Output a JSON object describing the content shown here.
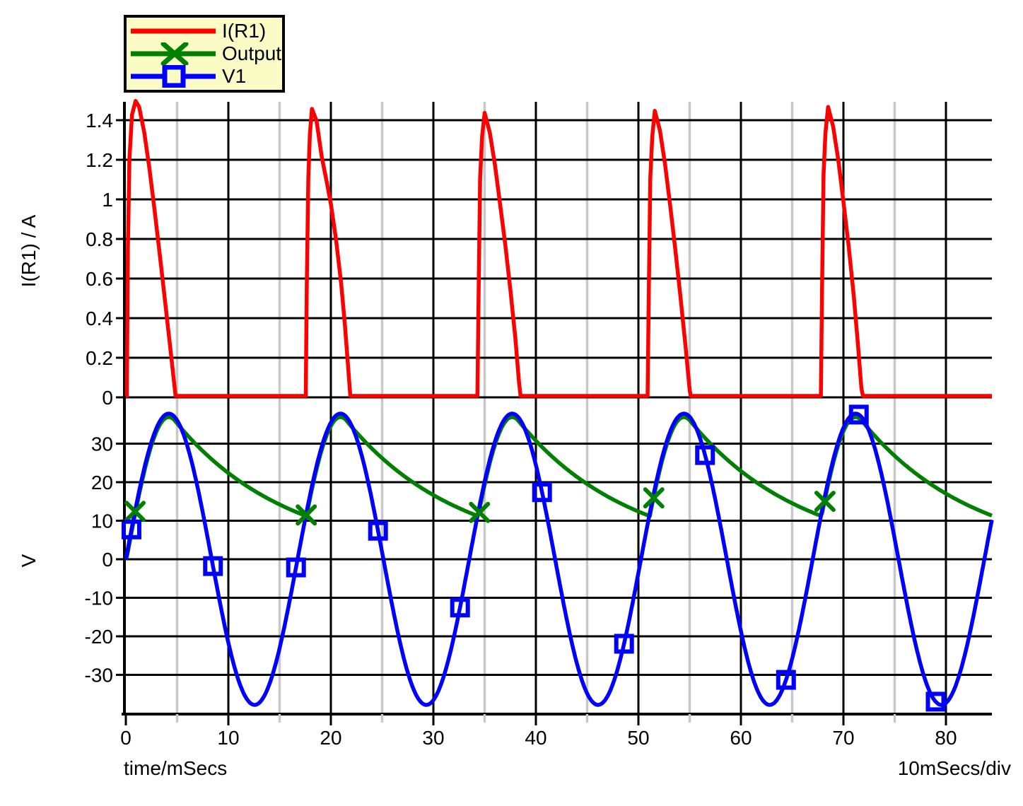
{
  "figure": {
    "background": "#FFFFFF"
  },
  "legend": {
    "bg": "#FBFBC6",
    "border_color": "#000000",
    "items": [
      {
        "label": "I(R1)",
        "color": "#FF0000",
        "marker": "none"
      },
      {
        "label": "Output",
        "color": "#008000",
        "marker": "x"
      },
      {
        "label": "V1",
        "color": "#0000FF",
        "marker": "square"
      }
    ]
  },
  "chart_data": {
    "type": "line",
    "layout": "two stacked plots sharing time axis, grid on",
    "x_axis": {
      "label": "time/mSecs",
      "scale_label": "10mSecs/div",
      "range": [
        0,
        84.5
      ],
      "major_ticks": [
        0,
        10,
        20,
        30,
        40,
        50,
        60,
        70,
        80
      ],
      "major_tick_labels": [
        "0",
        "10",
        "20",
        "30",
        "40",
        "50",
        "60",
        "70",
        "80"
      ],
      "minor_ticks": [
        5,
        15,
        25,
        35,
        45,
        55,
        65,
        75
      ],
      "grid_major_color": "#000000",
      "grid_minor_color": "#C8C8C8"
    },
    "top_plot": {
      "ylabel": "I(R1) / A",
      "y_range": [
        0,
        1.5
      ],
      "y_ticks": [
        0,
        0.2,
        0.4,
        0.6,
        0.8,
        1,
        1.2,
        1.4
      ],
      "y_tick_labels": [
        "0",
        "0.2",
        "0.4",
        "0.6",
        "0.8",
        "1",
        "1.2",
        "1.4"
      ],
      "series": [
        {
          "name": "I(R1)",
          "color": "#FF0000",
          "marker": "none",
          "points": [
            [
              0,
              0
            ],
            [
              0.1,
              0
            ],
            [
              0.2,
              0.75
            ],
            [
              0.35,
              1.2
            ],
            [
              0.6,
              1.42
            ],
            [
              0.95,
              1.49
            ],
            [
              1.3,
              1.46
            ],
            [
              1.8,
              1.33
            ],
            [
              2.3,
              1.15
            ],
            [
              2.8,
              0.94
            ],
            [
              3.3,
              0.72
            ],
            [
              3.8,
              0.49
            ],
            [
              4.3,
              0.26
            ],
            [
              4.7,
              0.07
            ],
            [
              4.85,
              0
            ],
            [
              17.55,
              0
            ],
            [
              17.65,
              0.55
            ],
            [
              17.8,
              1.1
            ],
            [
              17.95,
              1.32
            ],
            [
              18.15,
              1.45
            ],
            [
              18.6,
              1.39
            ],
            [
              19.1,
              1.21
            ],
            [
              19.6,
              1.08
            ],
            [
              20.0,
              0.97
            ],
            [
              20.5,
              0.79
            ],
            [
              21.0,
              0.57
            ],
            [
              21.35,
              0.37
            ],
            [
              21.65,
              0.17
            ],
            [
              21.9,
              0
            ],
            [
              34.3,
              0
            ],
            [
              34.42,
              0.55
            ],
            [
              34.56,
              1.1
            ],
            [
              34.75,
              1.31
            ],
            [
              35.0,
              1.43
            ],
            [
              35.5,
              1.33
            ],
            [
              36.0,
              1.17
            ],
            [
              36.5,
              0.97
            ],
            [
              37.0,
              0.77
            ],
            [
              37.5,
              0.54
            ],
            [
              38.0,
              0.29
            ],
            [
              38.35,
              0.07
            ],
            [
              38.5,
              0
            ],
            [
              50.9,
              0
            ],
            [
              51.02,
              0.55
            ],
            [
              51.16,
              1.1
            ],
            [
              51.35,
              1.31
            ],
            [
              51.6,
              1.44
            ],
            [
              52.1,
              1.34
            ],
            [
              52.6,
              1.17
            ],
            [
              53.1,
              0.96
            ],
            [
              53.6,
              0.74
            ],
            [
              54.1,
              0.5
            ],
            [
              54.6,
              0.25
            ],
            [
              55.0,
              0.03
            ],
            [
              55.1,
              0
            ],
            [
              67.8,
              0
            ],
            [
              67.92,
              0.55
            ],
            [
              68.06,
              1.12
            ],
            [
              68.25,
              1.33
            ],
            [
              68.5,
              1.46
            ],
            [
              69.0,
              1.36
            ],
            [
              69.5,
              1.19
            ],
            [
              70.0,
              0.98
            ],
            [
              70.5,
              0.76
            ],
            [
              71.0,
              0.51
            ],
            [
              71.4,
              0.27
            ],
            [
              71.75,
              0.04
            ],
            [
              71.9,
              0
            ],
            [
              84.5,
              0
            ]
          ]
        }
      ]
    },
    "bottom_plot": {
      "ylabel": "V",
      "y_range": [
        -40,
        39
      ],
      "y_ticks": [
        -30,
        -20,
        -10,
        0,
        10,
        20,
        30
      ],
      "y_tick_labels": [
        "-30",
        "-20",
        "-10",
        "0",
        "10",
        "20",
        "30"
      ],
      "series": [
        {
          "name": "Output",
          "color": "#008000",
          "marker": "x",
          "model": {
            "kind": "rectifier_output",
            "follows": "V1",
            "diode_drop_V": 0.9,
            "decay_tau_ms": 11.0,
            "conduction_windows_ms": [
              [
                0.1,
                4.85
              ],
              [
                17.55,
                21.9
              ],
              [
                34.3,
                38.5
              ],
              [
                50.9,
                55.1
              ],
              [
                67.8,
                71.9
              ]
            ],
            "peak_V": 36.5,
            "valley_V": 11
          },
          "marker_t_ms": [
            0.9,
            17.6,
            34.5,
            51.5,
            68.2
          ]
        },
        {
          "name": "V1",
          "color": "#0000FF",
          "marker": "square",
          "model": {
            "kind": "sine",
            "amplitude_V": 37.8,
            "period_ms": 16.75,
            "phase_deg": 0
          },
          "marker_t_ms": [
            0.55,
            8.5,
            16.6,
            24.6,
            32.6,
            40.6,
            48.6,
            56.5,
            64.4,
            71.5,
            79.0
          ]
        }
      ]
    }
  }
}
